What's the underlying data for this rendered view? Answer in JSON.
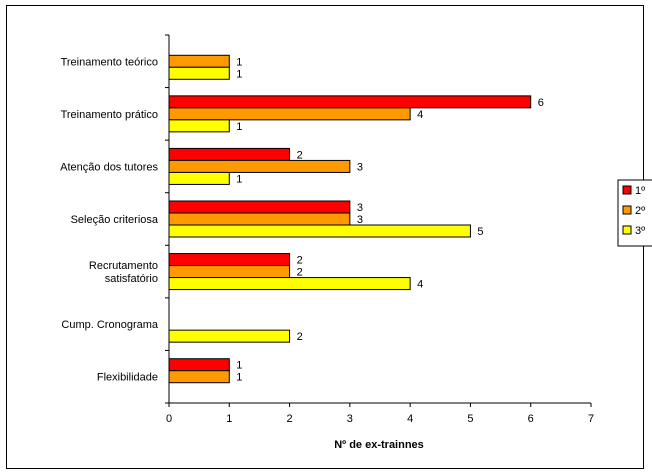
{
  "chart_data": {
    "type": "bar",
    "orientation": "horizontal",
    "categories": [
      [
        "Treinamento teórico"
      ],
      [
        "Treinamento prático"
      ],
      [
        "Atenção dos tutores"
      ],
      [
        "Seleção criteriosa"
      ],
      [
        "Recrutamento",
        "satisfatório"
      ],
      [
        "Cump. Cronograma"
      ],
      [
        "Flexibilidade"
      ]
    ],
    "series": [
      {
        "name": "1º",
        "color": "#ff0000",
        "values": [
          null,
          6,
          2,
          3,
          2,
          null,
          1
        ]
      },
      {
        "name": "2º",
        "color": "#ff9900",
        "values": [
          1,
          4,
          3,
          3,
          2,
          null,
          1
        ]
      },
      {
        "name": "3º",
        "color": "#ffff00",
        "values": [
          1,
          1,
          1,
          5,
          4,
          2,
          null
        ]
      }
    ],
    "xlabel": "Nº de ex-trainnes",
    "xlim": [
      0,
      7
    ],
    "xticks": [
      "0",
      "1",
      "2",
      "3",
      "4",
      "5",
      "6",
      "7"
    ],
    "grid": false,
    "legend": "right"
  }
}
